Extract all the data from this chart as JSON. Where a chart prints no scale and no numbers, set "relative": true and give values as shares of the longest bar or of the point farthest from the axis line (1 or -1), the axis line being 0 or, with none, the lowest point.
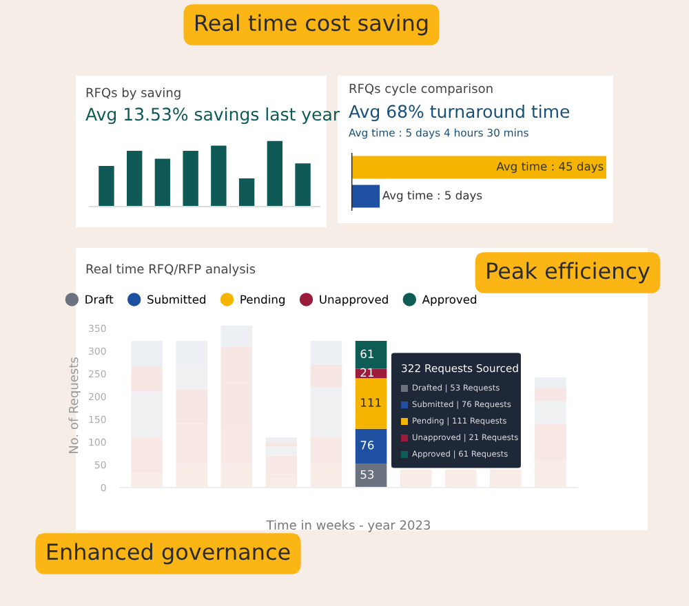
{
  "chart_data": [
    {
      "type": "bar",
      "title": "RFQs by saving",
      "subtitle": "Avg 13.53% savings last year",
      "relative": true,
      "categories": [
        null,
        null,
        null,
        null,
        null,
        null,
        null,
        null
      ],
      "values": [
        0.62,
        0.85,
        0.73,
        0.85,
        0.93,
        0.43,
        1,
        0.66
      ],
      "color": "#0f5a57",
      "annotations": [
        "Real time cost saving"
      ]
    },
    {
      "type": "bar",
      "orientation": "horizontal",
      "title": "RFQs cycle comparison",
      "subtitle": "Avg 68% turnaround time",
      "xlim": [
        0,
        45
      ],
      "tick_labels": false,
      "categories": [
        null,
        null
      ],
      "values": [
        45,
        5
      ],
      "colors": [
        "#f5b400",
        "#1f4fa0"
      ],
      "value_labels": [
        "Avg time : 45 days",
        "Avg time : 5 days"
      ],
      "annotations": [
        "Avg time : 5 days 4 hours 30 mins",
        "Peak efficiency"
      ]
    },
    {
      "type": "bar",
      "stacked": true,
      "title": "Real time RFQ/RFP analysis",
      "xlabel": "Time in weeks - year 2023",
      "ylabel": "No. of Requests",
      "categories": [
        null,
        null,
        null,
        null,
        null,
        null,
        null,
        null,
        null,
        null
      ],
      "ylim": [
        0,
        360
      ],
      "yticks": [
        0,
        50,
        100,
        150,
        200,
        250,
        300,
        350
      ],
      "legend": "top left",
      "series": [
        {
          "name": "Draft",
          "color": "#6b7280",
          "colors": [
            "#f8ede6",
            "#f8ede6",
            "#f8ede6",
            "#f8ede6",
            "#f8ede6",
            "#6b7280",
            "#f8ede6",
            "#f8ede6",
            "#f8ede6",
            "#f8ede6"
          ],
          "values": [
            31,
            51,
            51,
            30,
            51,
            53,
            40,
            40,
            40,
            60
          ],
          "value_labels": [
            null,
            null,
            null,
            null,
            null,
            "53",
            null,
            null,
            null,
            null
          ]
        },
        {
          "name": "Submitted",
          "color": "#1f4fa0",
          "colors": [
            "#f7e8e6",
            "#f7e8e6",
            "#f7e8e6",
            "#f7e8e6",
            "#f7e8e6",
            "#1f4fa0",
            "#f7e8e6",
            "#f7e8e6",
            "#f7e8e6",
            "#f7e8e6"
          ],
          "values": [
            80,
            90,
            80,
            40,
            60,
            76,
            null,
            null,
            null,
            80
          ],
          "value_labels": [
            null,
            null,
            null,
            null,
            null,
            "76",
            null,
            null,
            null,
            null
          ]
        },
        {
          "name": "Pending",
          "color": "#f5b400",
          "colors": [
            "#eef0f2",
            "#f6e6e4",
            "#f6e6e4",
            "#eef0f2",
            "#eef0f2",
            "#f5b400",
            "#eef0f2",
            "#eef0f2",
            "#eef0f2",
            "#eef0f2"
          ],
          "values": [
            100,
            75,
            100,
            20,
            110,
            111,
            null,
            null,
            null,
            50
          ],
          "value_labels": [
            null,
            null,
            null,
            null,
            null,
            "111",
            null,
            null,
            null,
            null
          ]
        },
        {
          "name": "Unapproved",
          "color": "#9b1b3d",
          "colors": [
            "#f6e6e4",
            "#eef0f2",
            "#f6e6e4",
            "#f6e6e4",
            "#f6e6e4",
            "#9b1b3d",
            "#f6e6e4",
            "#f6e6e4",
            "#f6e6e4",
            "#f6e6e4"
          ],
          "values": [
            55,
            50,
            80,
            10,
            50,
            21,
            null,
            null,
            null,
            30
          ],
          "value_labels": [
            null,
            null,
            null,
            null,
            null,
            "21",
            null,
            null,
            null,
            null
          ]
        },
        {
          "name": "Approved",
          "color": "#0d5c55",
          "colors": [
            "#eceff4",
            "#eceff4",
            "#eceff4",
            "#eceff4",
            "#eceff4",
            "#0d5c55",
            "#eceff4",
            "#eceff4",
            "#eceff4",
            "#eceff4"
          ],
          "values": [
            56,
            56,
            45,
            10,
            51,
            61,
            null,
            null,
            null,
            22
          ],
          "value_labels": [
            null,
            null,
            null,
            null,
            null,
            "61",
            null,
            null,
            null,
            null
          ]
        }
      ],
      "annotations": [
        "322 Requests Sourced",
        "Drafted | 53 Requests",
        "Submitted | 76 Requests",
        "Pending | 111 Requests",
        "Unapproved | 21 Requests",
        "Approved | 61 Requests",
        "Enhanced governance"
      ]
    }
  ]
}
